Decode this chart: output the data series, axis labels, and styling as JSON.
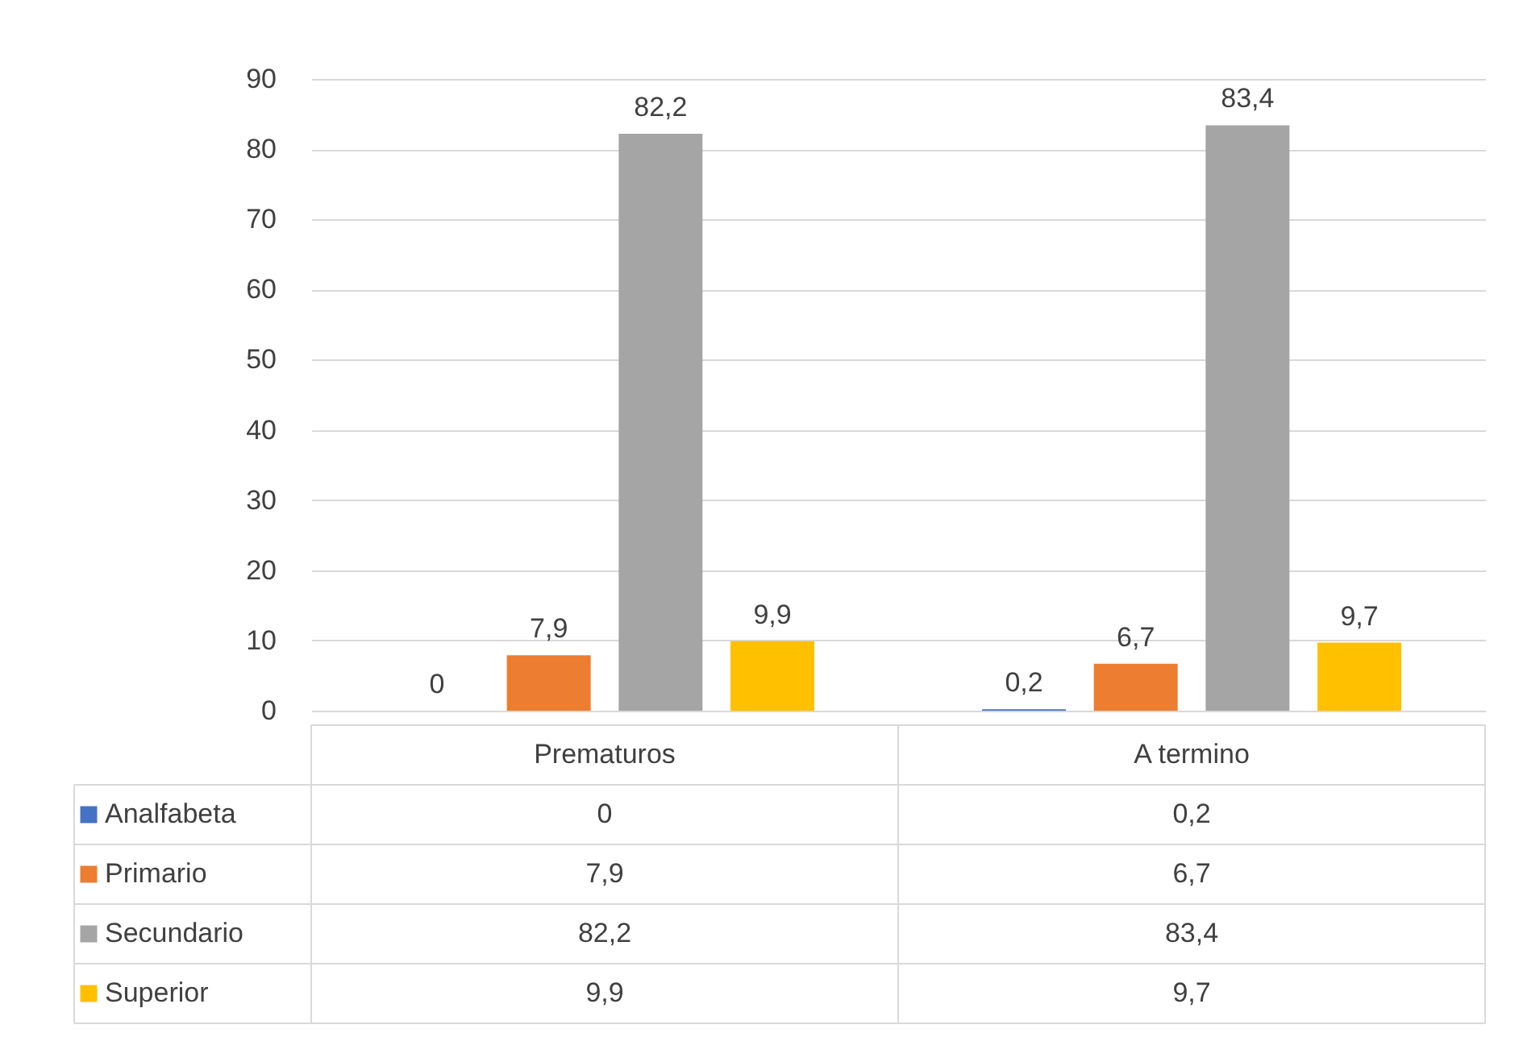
{
  "chart_data": {
    "type": "bar",
    "categories": [
      "Prematuros",
      "A termino"
    ],
    "series": [
      {
        "name": "Analfabeta",
        "color": "#4472c4",
        "values": [
          0,
          0.2
        ],
        "value_labels": [
          "0",
          "0,2"
        ]
      },
      {
        "name": "Primario",
        "color": "#ed7d31",
        "values": [
          7.9,
          6.7
        ],
        "value_labels": [
          "7,9",
          "6,7"
        ]
      },
      {
        "name": "Secundario",
        "color": "#a5a5a5",
        "values": [
          82.2,
          83.4
        ],
        "value_labels": [
          "82,2",
          "83,4"
        ]
      },
      {
        "name": "Superior",
        "color": "#ffc000",
        "values": [
          9.9,
          9.7
        ],
        "value_labels": [
          "9,9",
          "9,7"
        ]
      }
    ],
    "ylim": [
      0,
      90
    ],
    "yticks": [
      0,
      10,
      20,
      30,
      40,
      50,
      60,
      70,
      80,
      90
    ],
    "grid": "y",
    "legend": "left"
  }
}
